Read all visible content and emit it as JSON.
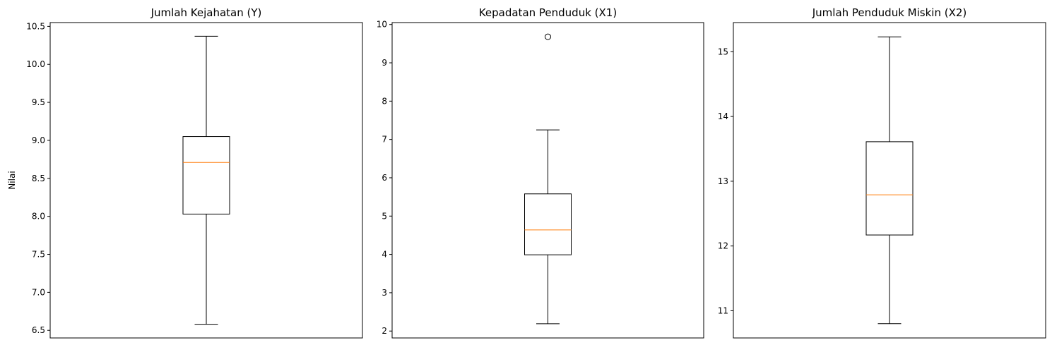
{
  "colors": {
    "box": "#000000",
    "median": "#ff7f0e",
    "frame": "#000000",
    "background": "#ffffff"
  },
  "chart_data": [
    {
      "type": "boxplot",
      "title": "Jumlah Kejahatan (Y)",
      "ylabel": "Nilai",
      "ylim": [
        6.4,
        10.55
      ],
      "yticks": [
        6.5,
        7.0,
        7.5,
        8.0,
        8.5,
        9.0,
        9.5,
        10.0,
        10.5
      ],
      "ytick_labels": [
        "6.5",
        "7.0",
        "7.5",
        "8.0",
        "8.5",
        "9.0",
        "9.5",
        "10.0",
        "10.5"
      ],
      "box": {
        "whisker_low": 6.58,
        "q1": 8.03,
        "median": 8.71,
        "q3": 9.05,
        "whisker_high": 10.37
      },
      "outliers": []
    },
    {
      "type": "boxplot",
      "title": "Kepadatan Penduduk (X1)",
      "ylabel": "",
      "ylim": [
        1.82,
        10.05
      ],
      "yticks": [
        2,
        3,
        4,
        5,
        6,
        7,
        8,
        9,
        10
      ],
      "ytick_labels": [
        "2",
        "3",
        "4",
        "5",
        "6",
        "7",
        "8",
        "9",
        "10"
      ],
      "box": {
        "whisker_low": 2.19,
        "q1": 3.99,
        "median": 4.64,
        "q3": 5.58,
        "whisker_high": 7.25
      },
      "outliers": [
        9.68
      ]
    },
    {
      "type": "boxplot",
      "title": "Jumlah Penduduk Miskin (X2)",
      "ylabel": "",
      "ylim": [
        10.58,
        15.45
      ],
      "yticks": [
        11,
        12,
        13,
        14,
        15
      ],
      "ytick_labels": [
        "11",
        "12",
        "13",
        "14",
        "15"
      ],
      "box": {
        "whisker_low": 10.8,
        "q1": 12.17,
        "median": 12.79,
        "q3": 13.61,
        "whisker_high": 15.23
      },
      "outliers": []
    }
  ]
}
